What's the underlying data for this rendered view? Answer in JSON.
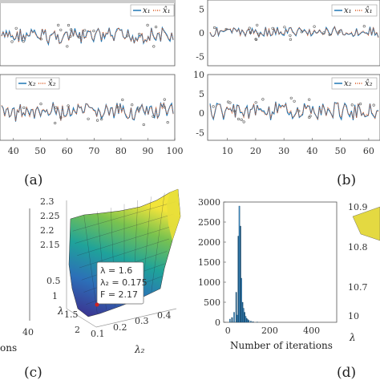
{
  "chart_data": [
    {
      "id": "a-top",
      "type": "line",
      "series": [
        {
          "name": "x₁",
          "color": "#1f77b4"
        },
        {
          "name": "x̂₁",
          "color": "#d95319",
          "style": "dotted"
        }
      ],
      "legend": "top-right"
    },
    {
      "id": "a-bottom",
      "type": "line",
      "series": [
        {
          "name": "x₂",
          "color": "#1f77b4"
        },
        {
          "name": "x̂₂",
          "color": "#d95319",
          "style": "dotted"
        }
      ],
      "legend": "top-right",
      "xticks": [
        "40",
        "50",
        "60",
        "70",
        "80",
        "90",
        "100"
      ],
      "xlim": [
        35,
        100
      ]
    },
    {
      "id": "b-top",
      "type": "line",
      "series": [
        {
          "name": "x₁",
          "color": "#1f77b4"
        },
        {
          "name": "x̂₁",
          "color": "#d95319",
          "style": "dotted"
        }
      ],
      "legend": "top-right",
      "yticks": [
        "5",
        "0",
        "-5"
      ],
      "ylim": [
        -7,
        7
      ]
    },
    {
      "id": "b-bottom",
      "type": "line",
      "series": [
        {
          "name": "x₂",
          "color": "#1f77b4"
        },
        {
          "name": "x̂₂",
          "color": "#d95319",
          "style": "dotted"
        }
      ],
      "legend": "top-right",
      "yticks": [
        "10",
        "5",
        "0",
        "-5"
      ],
      "ylim": [
        -7,
        10
      ],
      "xticks": [
        "10",
        "20",
        "30",
        "40",
        "50",
        "60"
      ],
      "xlim": [
        3,
        64
      ]
    },
    {
      "id": "c-left-fragment",
      "xticks": [
        "40"
      ],
      "xlabel_fragment": "ons"
    },
    {
      "id": "c-surface",
      "type": "surface",
      "zticks": [
        "2.3",
        "2.25",
        "2.2",
        "2.15"
      ],
      "lambda_ticks": [
        "0.5",
        "1",
        "1.5",
        "2"
      ],
      "lambda2_ticks": [
        "0.1",
        "0.2",
        "0.3",
        "0.4"
      ],
      "xlabel": "λ",
      "ylabel": "λ₂",
      "annotation": {
        "l1": "λ = 1.6",
        "l2": "λ₂ = 0.175",
        "l3": "F = 2.17"
      }
    },
    {
      "id": "d-hist",
      "type": "bar",
      "xlabel": "Number of iterations",
      "xticks": [
        "0",
        "200",
        "400"
      ],
      "xlim": [
        -20,
        520
      ],
      "yticks": [
        "0",
        "500",
        "1000",
        "1500",
        "2000",
        "2500",
        "3000"
      ],
      "ylim": [
        0,
        3000
      ],
      "x": [
        10,
        20,
        30,
        40,
        45,
        50,
        55,
        60,
        65,
        70,
        75,
        80,
        85,
        90,
        95,
        100,
        110,
        120,
        140
      ],
      "values": [
        80,
        120,
        250,
        750,
        180,
        2150,
        2900,
        2400,
        1100,
        500,
        350,
        250,
        150,
        100,
        70,
        50,
        30,
        15,
        8
      ]
    },
    {
      "id": "d-right-fragment",
      "zticks": [
        "10.9",
        "10.8",
        "10.7",
        "10"
      ],
      "label_fragment": "λ"
    }
  ],
  "captions": {
    "a": "(a)",
    "b": "(b)",
    "c": "(c)",
    "d": "(d)"
  }
}
